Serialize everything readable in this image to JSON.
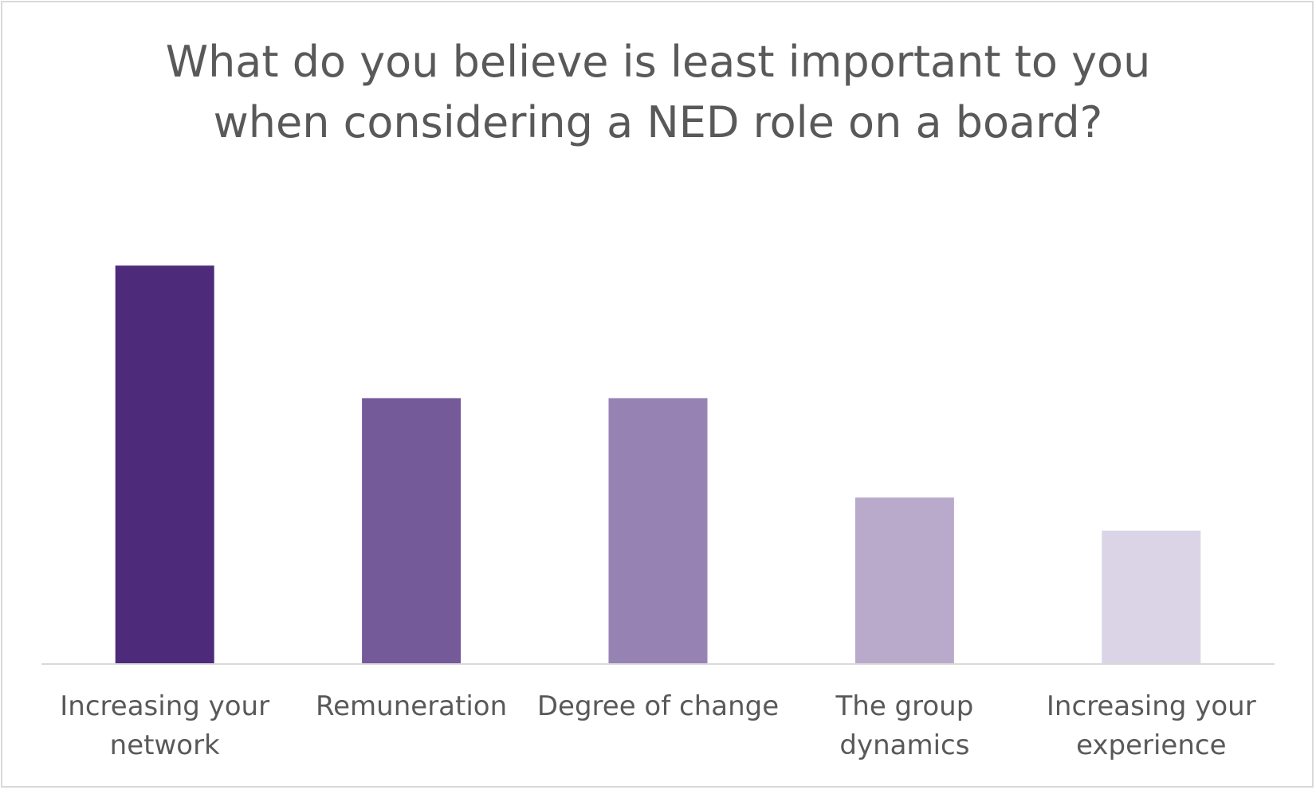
{
  "chart_data": {
    "type": "bar",
    "title": [
      "What do you believe is least important to you",
      "when considering a NED role on a board?"
    ],
    "xlabel": "",
    "ylabel": "",
    "categories": [
      [
        "Increasing your",
        "network"
      ],
      [
        "Remuneration"
      ],
      [
        "Degree of change"
      ],
      [
        "The group",
        "dynamics"
      ],
      [
        "Increasing your",
        "experience"
      ]
    ],
    "values": [
      12,
      8,
      8,
      5,
      4
    ],
    "ylim": [
      0,
      14
    ],
    "grid": false,
    "legend": "none",
    "colors": [
      "#4e2a7b",
      "#755a99",
      "#9783b3",
      "#b9aacc",
      "#dbd4e6"
    ],
    "axis_color": "#d9d9d9"
  }
}
